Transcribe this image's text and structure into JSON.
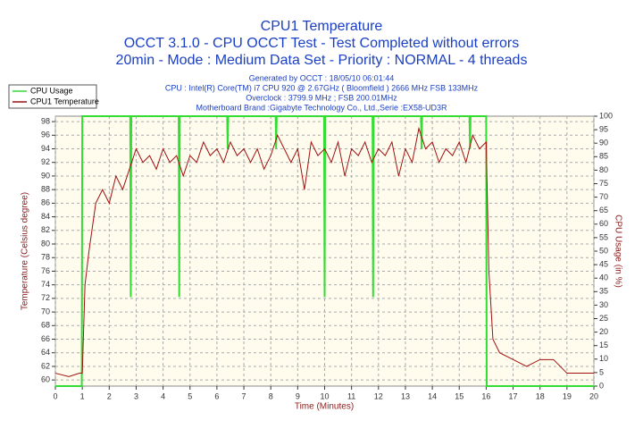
{
  "chart_data": {
    "type": "line",
    "title": "CPU1 Temperature",
    "subtitle": "OCCT 3.1.0 - CPU OCCT Test - Test Completed without errors",
    "subtitle2": "20min - Mode : Medium Data Set - Priority : NORMAL - 4 threads",
    "annotations": [
      "Generated by OCCT : 18/05/10 06:01:44",
      "CPU : Intel(R) Core(TM) i7 CPU 920 @ 2.67GHz ( Bloomfield ) 2666 MHz FSB 133MHz",
      "Overclock : 3799.9 MHz ; FSB 200.01MHz",
      "Motherboard Brand :Gigabyte Technology Co., Ltd.,Serie :EX58-UD3R"
    ],
    "x_label": "Time (Minutes)",
    "y_label": "Temperature (Celsius degree)",
    "y2_label": "CPU Usage (in %)",
    "xlim": [
      0,
      20
    ],
    "xticks": [
      0,
      1,
      2,
      3,
      4,
      5,
      6,
      7,
      8,
      9,
      10,
      11,
      12,
      13,
      14,
      15,
      16,
      17,
      18,
      19,
      20
    ],
    "ylim": [
      59.1,
      98.8
    ],
    "yticks": [
      60,
      62,
      64,
      66,
      68,
      70,
      72,
      74,
      76,
      78,
      80,
      82,
      84,
      86,
      88,
      90,
      92,
      94,
      96,
      98
    ],
    "y2lim": [
      0,
      100
    ],
    "y2ticks": [
      0,
      5,
      10,
      15,
      20,
      25,
      30,
      35,
      40,
      45,
      50,
      55,
      60,
      65,
      70,
      75,
      80,
      85,
      90,
      95,
      100
    ],
    "grid": true,
    "legend": "top-left",
    "series": [
      {
        "name": "CPU Usage",
        "color": "#33dd33",
        "axis": "y2",
        "x": [
          0,
          0.98,
          1,
          2.78,
          2.8,
          2.82,
          4.58,
          4.6,
          4.62,
          6.38,
          6.4,
          6.42,
          8.18,
          8.2,
          8.22,
          9.98,
          10,
          10.02,
          11.78,
          11.8,
          11.82,
          13.58,
          13.6,
          13.62,
          15.38,
          15.4,
          15.42,
          16,
          16.02,
          20
        ],
        "values": [
          0,
          0,
          100,
          100,
          33,
          100,
          100,
          33,
          100,
          100,
          88,
          100,
          100,
          88,
          100,
          100,
          33,
          100,
          100,
          33,
          100,
          100,
          88,
          100,
          100,
          88,
          100,
          100,
          0,
          0
        ]
      },
      {
        "name": "CPU1 Temperature",
        "color": "#a01010",
        "x": [
          0,
          0.5,
          0.9,
          1,
          1.1,
          1.25,
          1.5,
          1.75,
          2,
          2.25,
          2.5,
          2.75,
          3,
          3.25,
          3.5,
          3.75,
          4,
          4.25,
          4.5,
          4.75,
          5,
          5.25,
          5.5,
          5.75,
          6,
          6.25,
          6.5,
          6.75,
          7,
          7.25,
          7.5,
          7.75,
          8,
          8.25,
          8.5,
          8.75,
          9,
          9.25,
          9.5,
          9.75,
          10,
          10.25,
          10.5,
          10.75,
          11,
          11.25,
          11.5,
          11.75,
          12,
          12.25,
          12.5,
          12.75,
          13,
          13.25,
          13.5,
          13.75,
          14,
          14.25,
          14.5,
          14.75,
          15,
          15.25,
          15.5,
          15.75,
          16,
          16.1,
          16.25,
          16.5,
          17,
          17.5,
          18,
          18.5,
          19,
          19.5,
          20
        ],
        "values": [
          61,
          60.5,
          61,
          61,
          74,
          79,
          86,
          88,
          86,
          90,
          88,
          91,
          94,
          92,
          93,
          91,
          94,
          92,
          93,
          90,
          93,
          92,
          95,
          93,
          94,
          92,
          95,
          93,
          94,
          92,
          94,
          91,
          93,
          96,
          94,
          92,
          94,
          88,
          95,
          93,
          94,
          92,
          95,
          90,
          94,
          93,
          95,
          92,
          94,
          93,
          95,
          90,
          94,
          92,
          97,
          94,
          95,
          92,
          94,
          93,
          95,
          92,
          96,
          94,
          95,
          76,
          66,
          64,
          63,
          62,
          63,
          63,
          61,
          61,
          61
        ]
      }
    ]
  }
}
